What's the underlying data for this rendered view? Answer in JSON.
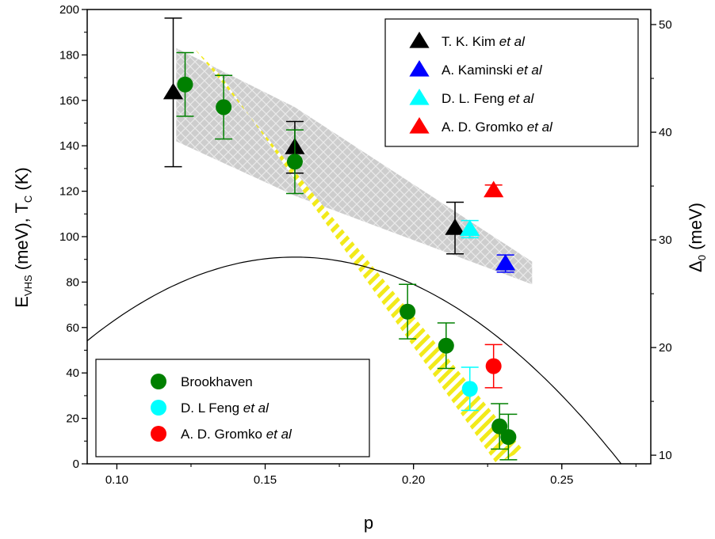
{
  "chart_data": {
    "type": "scatter",
    "xlabel": "p",
    "ylabel_left": {
      "main": "E",
      "sub1": "VHS",
      "mid": " (meV),  T",
      "sub2": "C",
      "end": " (K)"
    },
    "ylabel_right": {
      "main": "Δ",
      "sub": "0",
      "end": " (meV)"
    },
    "xlim": [
      0.09,
      0.28
    ],
    "ylim_left": [
      0,
      200
    ],
    "ylim_right": [
      9.2,
      51.4
    ],
    "x_ticks": [
      0.1,
      0.15,
      0.2,
      0.25
    ],
    "x_tick_labels": [
      "0.10",
      "0.15",
      "0.20",
      "0.25"
    ],
    "y_left_ticks": [
      0,
      20,
      40,
      60,
      80,
      100,
      120,
      140,
      160,
      180,
      200
    ],
    "y_left_tick_labels": [
      "0",
      "20",
      "40",
      "60",
      "80",
      "100",
      "120",
      "140",
      "160",
      "180",
      "200"
    ],
    "y_right_ticks": [
      10,
      20,
      30,
      40,
      50
    ],
    "y_right_tick_labels": [
      "10",
      "20",
      "30",
      "40",
      "50"
    ],
    "tc_dome": {
      "type": "line",
      "color": "#000000",
      "x_min": 0.09,
      "x_max": 0.27,
      "x_peak": 0.16,
      "y_peak": 91
    },
    "bands": [
      {
        "name": "gap-band",
        "style": "gray-hatch",
        "upper": [
          [
            0.12,
            183
          ],
          [
            0.16,
            157
          ],
          [
            0.24,
            89
          ]
        ],
        "lower": [
          [
            0.12,
            142
          ],
          [
            0.16,
            118
          ],
          [
            0.24,
            79
          ]
        ]
      },
      {
        "name": "evhs-band",
        "style": "yellow-stripes",
        "upper": [
          [
            0.126,
            183
          ],
          [
            0.237,
            6
          ]
        ],
        "lower": [
          [
            0.135,
            171
          ],
          [
            0.228,
            0
          ]
        ]
      }
    ],
    "series": [
      {
        "name": "T. K. Kim",
        "name_italic": "et al",
        "marker": "triangle",
        "color": "#000000",
        "axis": "right",
        "x": [
          0.119,
          0.16,
          0.214
        ],
        "y": [
          43.7,
          38.6,
          31.1
        ],
        "err": [
          6.9,
          2.4,
          2.4
        ]
      },
      {
        "name": "A. Kaminski",
        "name_italic": "et al",
        "marker": "triangle",
        "color": "#0000ff",
        "axis": "right",
        "x": [
          0.231
        ],
        "y": [
          27.8
        ],
        "err": [
          0.8
        ]
      },
      {
        "name": "D. L. Feng",
        "name_italic": "et al",
        "marker": "triangle",
        "color": "#00ffff",
        "axis": "right",
        "x": [
          0.219
        ],
        "y": [
          31.0
        ],
        "err": [
          0.8
        ]
      },
      {
        "name": "A. D. Gromko",
        "name_italic": "et al",
        "marker": "triangle",
        "color": "#ff0000",
        "axis": "right",
        "x": [
          0.227
        ],
        "y": [
          34.6
        ],
        "err": [
          0.5
        ]
      },
      {
        "name": "Brookhaven",
        "marker": "circle",
        "color": "#008000",
        "axis": "left",
        "x": [
          0.123,
          0.136,
          0.16,
          0.198,
          0.211,
          0.229,
          0.232
        ],
        "y": [
          167,
          157,
          133,
          67,
          52,
          16.5,
          11.8
        ],
        "err": [
          14,
          14,
          14,
          12,
          10,
          10,
          10
        ]
      },
      {
        "name": "D. L Feng",
        "name_italic": "et al",
        "marker": "circle",
        "color": "#00ffff",
        "axis": "left",
        "x": [
          0.219
        ],
        "y": [
          33
        ],
        "err": [
          9.5
        ]
      },
      {
        "name": "A. D. Gromko",
        "name_italic": "et al",
        "marker": "circle",
        "color": "#ff0000",
        "axis": "left",
        "x": [
          0.227
        ],
        "y": [
          43
        ],
        "err": [
          9.5
        ]
      }
    ],
    "legend_top": {
      "placement": "top-right",
      "series_indices": [
        0,
        1,
        2,
        3
      ]
    },
    "legend_bottom": {
      "placement": "bottom-left",
      "series_indices": [
        4,
        5,
        6
      ]
    }
  }
}
